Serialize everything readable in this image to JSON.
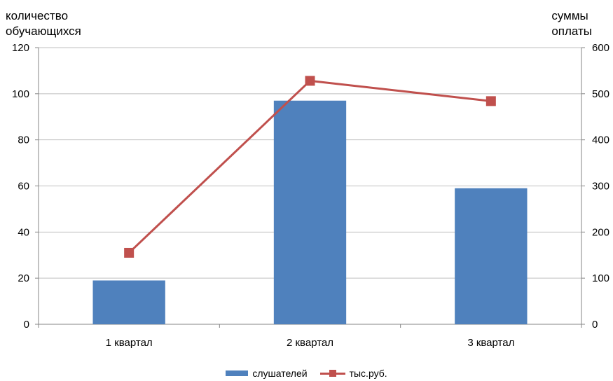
{
  "chart_data": {
    "type": "bar",
    "categories": [
      "1 квартал",
      "2 квартал",
      "3 квартал"
    ],
    "series": [
      {
        "name": "слушателей",
        "type": "bar",
        "axis": "left",
        "values": [
          19,
          97,
          59
        ],
        "color": "#4f81bd"
      },
      {
        "name": "тыс.руб.",
        "type": "line",
        "axis": "right",
        "values": [
          155,
          528,
          484
        ],
        "color": "#c0504d"
      }
    ],
    "ylabel": "количество\nобучающихся",
    "ylabel_right": "суммы\nоплаты",
    "ylim": [
      0,
      120
    ],
    "ylim_right": [
      0,
      600
    ],
    "yticks": [
      0,
      20,
      40,
      60,
      80,
      100,
      120
    ],
    "yticks_right": [
      0,
      100,
      200,
      300,
      400,
      500,
      600
    ],
    "grid": true,
    "legend": "bottom"
  }
}
